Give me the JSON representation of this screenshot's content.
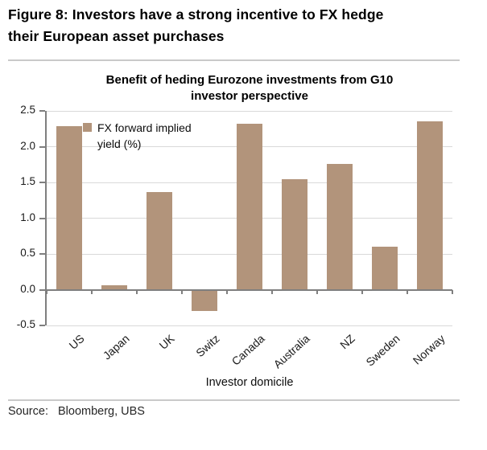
{
  "figure": {
    "heading_lines": [
      "Figure 8: Investors have a strong incentive to FX hedge",
      "their European asset purchases"
    ],
    "source_label": "Source:",
    "source_value": "Bloomberg, UBS"
  },
  "chart_data": {
    "type": "bar",
    "title": "Benefit of heding Eurozone investments from G10 investor perspective",
    "title_lines": [
      "Benefit of heding Eurozone investments from G10",
      "investor perspective"
    ],
    "categories": [
      "US",
      "Japan",
      "UK",
      "Switz",
      "Canada",
      "Australia",
      "NZ",
      "Sweden",
      "Norway"
    ],
    "values": [
      2.29,
      0.06,
      1.36,
      -0.3,
      2.32,
      1.55,
      1.76,
      0.6,
      2.35
    ],
    "series_label": "FX forward implied yield (%)",
    "series_label_lines": [
      "FX forward implied",
      "yield (%)"
    ],
    "xlabel": "Investor domicile",
    "ylabel": "",
    "ylim": [
      -0.5,
      2.5
    ],
    "yticks": [
      2.5,
      2.0,
      1.5,
      1.0,
      0.5,
      0.0,
      -0.5
    ],
    "grid": true,
    "legend_position": "inside-top-left",
    "bar_color": "#b2947b",
    "gridline_color": "#d9d9d9",
    "axis_color": "#7f7f7f"
  }
}
